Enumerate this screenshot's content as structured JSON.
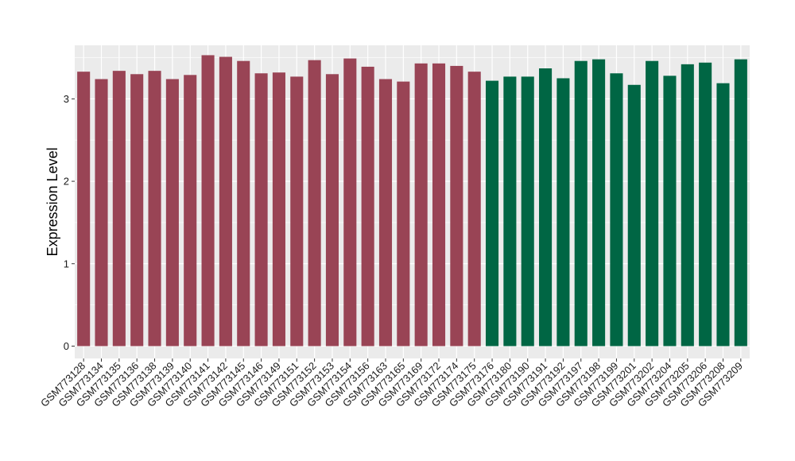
{
  "chart_data": {
    "type": "bar",
    "ylabel": "Expression Level",
    "xlabel": "",
    "title": "",
    "ylim": [
      -0.15,
      3.65
    ],
    "yticks": [
      0,
      1,
      2,
      3
    ],
    "grid": true,
    "legend": "none",
    "colors": {
      "group1": "#994455",
      "group2": "#006644",
      "panel": "#ebebeb",
      "grid": "#ffffff"
    },
    "categories": [
      "GSM773128",
      "GSM773134",
      "GSM773135",
      "GSM773136",
      "GSM773138",
      "GSM773139",
      "GSM773140",
      "GSM773141",
      "GSM773142",
      "GSM773145",
      "GSM773146",
      "GSM773149",
      "GSM773151",
      "GSM773152",
      "GSM773153",
      "GSM773154",
      "GSM773156",
      "GSM773163",
      "GSM773165",
      "GSM773169",
      "GSM773172",
      "GSM773174",
      "GSM773175",
      "GSM773176",
      "GSM773180",
      "GSM773190",
      "GSM773191",
      "GSM773192",
      "GSM773197",
      "GSM773198",
      "GSM773199",
      "GSM773201",
      "GSM773202",
      "GSM773204",
      "GSM773205",
      "GSM773206",
      "GSM773208",
      "GSM773209"
    ],
    "values": [
      3.33,
      3.24,
      3.34,
      3.3,
      3.34,
      3.24,
      3.29,
      3.53,
      3.51,
      3.46,
      3.31,
      3.32,
      3.27,
      3.47,
      3.3,
      3.49,
      3.39,
      3.24,
      3.21,
      3.43,
      3.43,
      3.4,
      3.33,
      3.22,
      3.27,
      3.27,
      3.37,
      3.25,
      3.46,
      3.48,
      3.31,
      3.17,
      3.46,
      3.28,
      3.42,
      3.44,
      3.19,
      3.48
    ],
    "groups": [
      1,
      1,
      1,
      1,
      1,
      1,
      1,
      1,
      1,
      1,
      1,
      1,
      1,
      1,
      1,
      1,
      1,
      1,
      1,
      1,
      1,
      1,
      1,
      2,
      2,
      2,
      2,
      2,
      2,
      2,
      2,
      2,
      2,
      2,
      2,
      2,
      2,
      2
    ]
  }
}
